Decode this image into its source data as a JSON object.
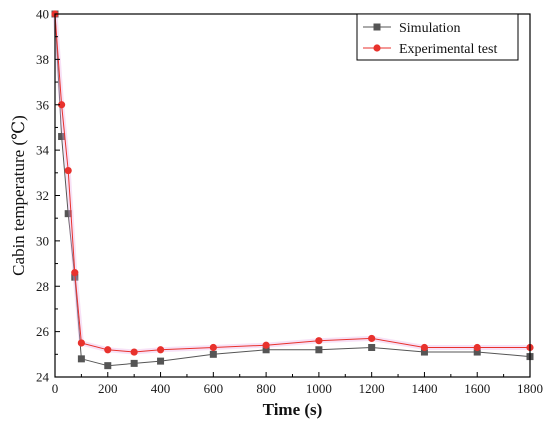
{
  "chart_data": {
    "type": "line",
    "title": "",
    "xlabel": "Time (s)",
    "ylabel": "Cabin temperature (℃)",
    "xlim": [
      0,
      1800
    ],
    "ylim": [
      24,
      40
    ],
    "x_ticks": [
      0,
      200,
      400,
      600,
      800,
      1000,
      1200,
      1400,
      1600,
      1800
    ],
    "y_ticks": [
      24,
      26,
      28,
      30,
      32,
      34,
      36,
      38,
      40
    ],
    "grid": false,
    "legend_position": "top-right",
    "series": [
      {
        "name": "Simulation",
        "color": "#555555",
        "marker": "square",
        "x": [
          0,
          25,
          50,
          75,
          100,
          200,
          300,
          400,
          600,
          800,
          1000,
          1200,
          1400,
          1600,
          1800
        ],
        "y": [
          40.0,
          34.6,
          31.2,
          28.4,
          24.8,
          24.5,
          24.6,
          24.7,
          25.0,
          25.2,
          25.2,
          25.3,
          25.1,
          25.1,
          24.9
        ]
      },
      {
        "name": "Experimental test",
        "color": "#e8322d",
        "marker": "circle",
        "x": [
          0,
          25,
          50,
          75,
          100,
          200,
          300,
          400,
          600,
          800,
          1000,
          1200,
          1400,
          1600,
          1800
        ],
        "y": [
          40.0,
          36.0,
          33.1,
          28.6,
          25.5,
          25.2,
          25.1,
          25.2,
          25.3,
          25.4,
          25.6,
          25.7,
          25.3,
          25.3,
          25.3
        ]
      }
    ]
  }
}
